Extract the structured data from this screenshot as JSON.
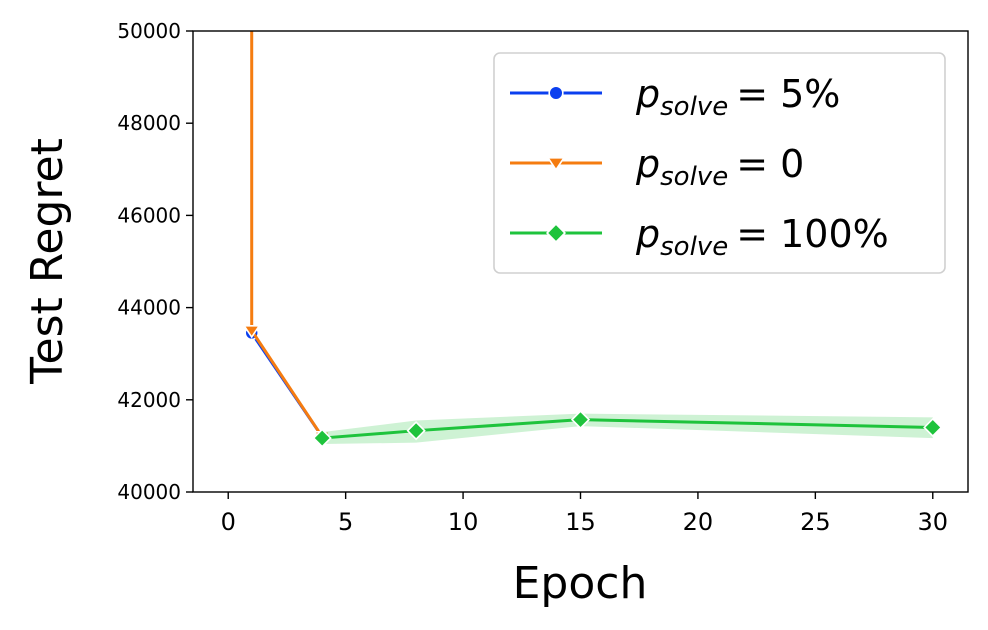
{
  "chart_data": {
    "type": "line",
    "xlabel": "Epoch",
    "ylabel": "Test Regret",
    "xlim": [
      -1.5,
      31.5
    ],
    "ylim": [
      40000,
      50000
    ],
    "xticks": [
      "0",
      "5",
      "10",
      "15",
      "20",
      "25",
      "30"
    ],
    "yticks": [
      "40000",
      "42000",
      "44000",
      "46000",
      "48000",
      "50000"
    ],
    "grid": false,
    "legend_position": "top-right",
    "series": [
      {
        "name": "p_solve = 5%",
        "name_base": "p",
        "name_sub": "solve",
        "name_value": "= 5%",
        "color": "#0b3fef",
        "marker": "circle",
        "x": [
          1,
          4
        ],
        "y": [
          43450,
          41200
        ]
      },
      {
        "name": "p_solve = 0",
        "name_base": "p",
        "name_sub": "solve",
        "name_value": "= 0",
        "color": "#f57c10",
        "marker": "triangle-down",
        "x": [
          1,
          4
        ],
        "y": [
          43500,
          41200
        ],
        "lead_in_from_y": 51000
      },
      {
        "name": "p_solve = 100%",
        "name_base": "p",
        "name_sub": "solve",
        "name_value": "= 100%",
        "color": "#1ec33c",
        "marker": "diamond",
        "x": [
          4,
          8,
          15,
          30
        ],
        "y": [
          41170,
          41330,
          41570,
          41400
        ],
        "band_upper": [
          41300,
          41550,
          41700,
          41620
        ],
        "band_lower": [
          41040,
          41070,
          41430,
          41170
        ]
      }
    ]
  }
}
